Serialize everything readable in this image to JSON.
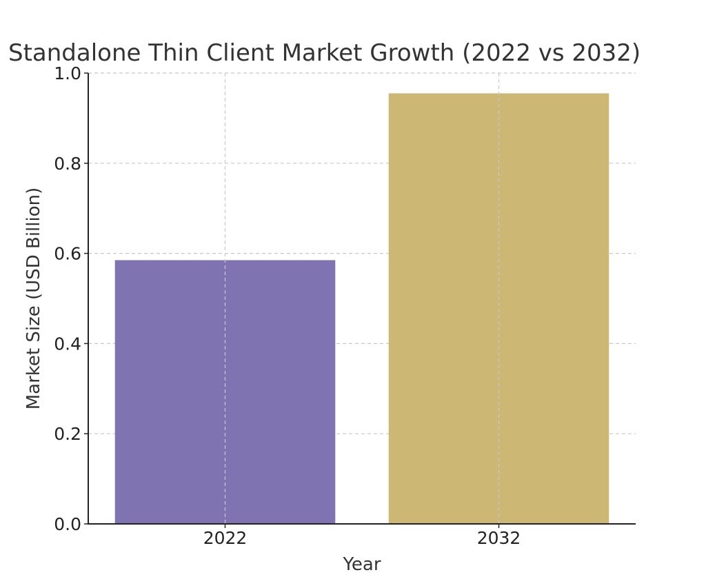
{
  "chart_data": {
    "type": "bar",
    "title": "Standalone Thin Client Market Growth (2022 vs 2032)",
    "xlabel": "Year",
    "ylabel": "Market Size (USD Billion)",
    "categories": [
      "2022",
      "2032"
    ],
    "values": [
      0.585,
      0.955
    ],
    "colors": [
      "#8073b2",
      "#ccb774"
    ],
    "ylim": [
      0,
      1.0
    ],
    "yticks": [
      "0.0",
      "0.2",
      "0.4",
      "0.6",
      "0.8",
      "1.0"
    ],
    "grid": true
  }
}
